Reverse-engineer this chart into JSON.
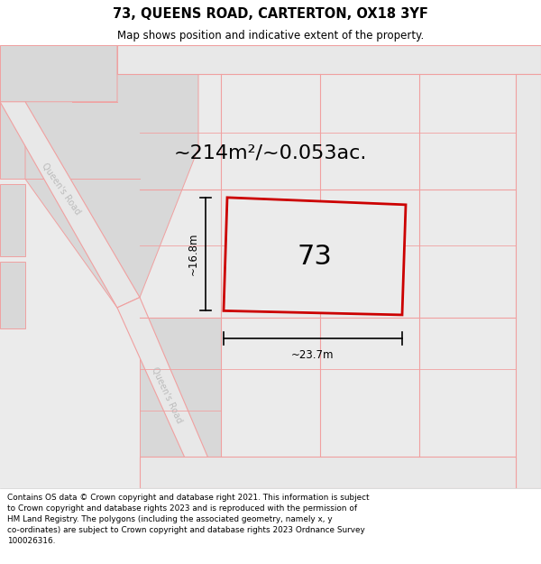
{
  "title": "73, QUEENS ROAD, CARTERTON, OX18 3YF",
  "subtitle": "Map shows position and indicative extent of the property.",
  "area_text": "~214m²/~0.053ac.",
  "plot_number": "73",
  "dim_width": "~23.7m",
  "dim_height": "~16.8m",
  "road_label_1": "Queen's Road",
  "road_label_2": "Queen's Road",
  "bg_color": "#ffffff",
  "map_bg": "#ebebeb",
  "block_color": "#d8d8d8",
  "road_color": "#f0a0a0",
  "road_stripe_color": "#e8e8e8",
  "plot_edge_color": "#cc0000",
  "plot_face_color": "#ebebeb",
  "arrow_color": "#000000",
  "text_color": "#000000",
  "road_text_color": "#bbbbbb",
  "footer_text": "Contains OS data © Crown copyright and database right 2021. This information is subject to Crown copyright and database rights 2023 and is reproduced with the permission of HM Land Registry. The polygons (including the associated geometry, namely x, y co-ordinates) are subject to Crown copyright and database rights 2023 Ordnance Survey 100026316."
}
